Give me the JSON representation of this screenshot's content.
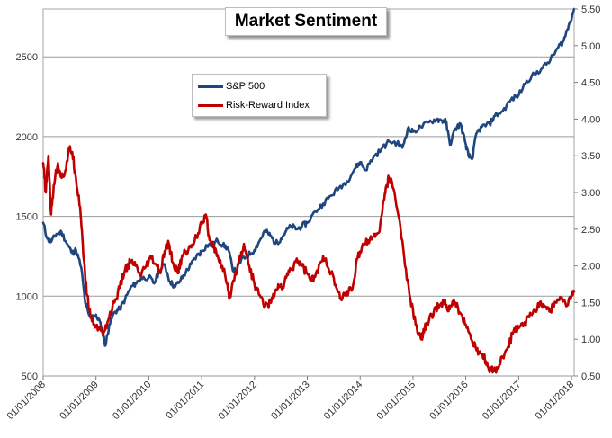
{
  "chart_data": {
    "type": "line",
    "title": "Market Sentiment",
    "xlabel": "",
    "ylabel": "",
    "x_ticks": [
      "01/01/2008",
      "01/01/2009",
      "01/01/2010",
      "01/01/2011",
      "01/01/2012",
      "01/01/2013",
      "01/01/2014",
      "01/01/2015",
      "01/01/2016",
      "01/01/2017",
      "01/01/2018"
    ],
    "y_left_ticks": [
      500,
      1000,
      1500,
      2000,
      2500
    ],
    "y_left_range": [
      500,
      2800
    ],
    "y_right_ticks": [
      "0.50",
      "1.00",
      "1.50",
      "2.00",
      "2.50",
      "3.00",
      "3.50",
      "4.00",
      "4.50",
      "5.00",
      "5.50"
    ],
    "y_right_range": [
      0.5,
      5.5
    ],
    "x_range": [
      2008.0,
      2018.05
    ],
    "grid": "horizontal",
    "legend_position": "top-center",
    "series": [
      {
        "name": "S&P 500",
        "axis": "left",
        "color": "#1f477e",
        "x": [
          2008.0,
          2008.08,
          2008.15,
          2008.25,
          2008.35,
          2008.45,
          2008.55,
          2008.62,
          2008.72,
          2008.8,
          2008.87,
          2008.95,
          2009.05,
          2009.12,
          2009.18,
          2009.25,
          2009.35,
          2009.45,
          2009.55,
          2009.65,
          2009.75,
          2009.85,
          2010.0,
          2010.1,
          2010.2,
          2010.3,
          2010.4,
          2010.5,
          2010.6,
          2010.7,
          2010.8,
          2010.9,
          2011.0,
          2011.1,
          2011.2,
          2011.3,
          2011.4,
          2011.5,
          2011.58,
          2011.65,
          2011.75,
          2011.85,
          2012.0,
          2012.1,
          2012.2,
          2012.3,
          2012.4,
          2012.5,
          2012.6,
          2012.7,
          2012.8,
          2012.9,
          2013.0,
          2013.15,
          2013.3,
          2013.45,
          2013.6,
          2013.75,
          2013.9,
          2014.0,
          2014.1,
          2014.25,
          2014.4,
          2014.55,
          2014.7,
          2014.8,
          2014.9,
          2015.0,
          2015.15,
          2015.3,
          2015.45,
          2015.55,
          2015.62,
          2015.7,
          2015.8,
          2015.9,
          2016.0,
          2016.05,
          2016.12,
          2016.2,
          2016.3,
          2016.45,
          2016.55,
          2016.7,
          2016.85,
          2017.0,
          2017.15,
          2017.3,
          2017.45,
          2017.6,
          2017.75,
          2017.85,
          2017.95,
          2018.05
        ],
        "values": [
          1460,
          1360,
          1340,
          1390,
          1400,
          1330,
          1270,
          1290,
          1180,
          950,
          880,
          880,
          860,
          780,
          690,
          820,
          900,
          920,
          980,
          1050,
          1080,
          1110,
          1120,
          1080,
          1160,
          1200,
          1090,
          1060,
          1100,
          1150,
          1200,
          1250,
          1280,
          1320,
          1320,
          1350,
          1320,
          1300,
          1180,
          1150,
          1230,
          1250,
          1290,
          1350,
          1410,
          1380,
          1330,
          1360,
          1410,
          1440,
          1420,
          1440,
          1460,
          1530,
          1580,
          1630,
          1680,
          1720,
          1800,
          1840,
          1790,
          1870,
          1920,
          1970,
          1960,
          1930,
          2050,
          2030,
          2060,
          2090,
          2110,
          2100,
          2100,
          1950,
          2050,
          2080,
          1950,
          1880,
          1860,
          2020,
          2060,
          2080,
          2130,
          2160,
          2230,
          2260,
          2350,
          2390,
          2430,
          2480,
          2560,
          2600,
          2700,
          2800
        ]
      },
      {
        "name": "Risk-Reward Index",
        "axis": "right",
        "color": "#c00000",
        "x": [
          2008.0,
          2008.05,
          2008.1,
          2008.15,
          2008.2,
          2008.28,
          2008.35,
          2008.42,
          2008.5,
          2008.55,
          2008.62,
          2008.7,
          2008.75,
          2008.8,
          2008.87,
          2008.95,
          2009.05,
          2009.15,
          2009.25,
          2009.35,
          2009.45,
          2009.55,
          2009.65,
          2009.75,
          2009.85,
          2009.95,
          2010.05,
          2010.15,
          2010.22,
          2010.3,
          2010.38,
          2010.45,
          2010.55,
          2010.62,
          2010.7,
          2010.8,
          2010.9,
          2011.0,
          2011.08,
          2011.15,
          2011.22,
          2011.3,
          2011.38,
          2011.45,
          2011.52,
          2011.6,
          2011.7,
          2011.8,
          2011.9,
          2012.0,
          2012.1,
          2012.2,
          2012.3,
          2012.38,
          2012.45,
          2012.55,
          2012.62,
          2012.7,
          2012.8,
          2012.9,
          2013.0,
          2013.08,
          2013.15,
          2013.25,
          2013.35,
          2013.45,
          2013.55,
          2013.62,
          2013.7,
          2013.78,
          2013.87,
          2013.95,
          2014.05,
          2014.15,
          2014.25,
          2014.35,
          2014.45,
          2014.5,
          2014.55,
          2014.65,
          2014.75,
          2014.85,
          2014.95,
          2015.05,
          2015.15,
          2015.22,
          2015.3,
          2015.4,
          2015.5,
          2015.6,
          2015.65,
          2015.72,
          2015.8,
          2015.9,
          2016.0,
          2016.1,
          2016.2,
          2016.3,
          2016.38,
          2016.45,
          2016.52,
          2016.6,
          2016.7,
          2016.8,
          2016.9,
          2017.0,
          2017.1,
          2017.2,
          2017.3,
          2017.4,
          2017.5,
          2017.6,
          2017.7,
          2017.8,
          2017.9,
          2018.0,
          2018.05
        ],
        "values": [
          3.4,
          3.0,
          3.5,
          2.7,
          3.1,
          3.4,
          3.2,
          3.3,
          3.6,
          3.55,
          3.2,
          2.8,
          2.3,
          1.8,
          1.4,
          1.2,
          1.15,
          1.1,
          1.3,
          1.5,
          1.7,
          1.95,
          2.05,
          2.0,
          1.85,
          2.0,
          2.1,
          2.0,
          1.9,
          2.2,
          2.3,
          2.05,
          1.9,
          2.1,
          2.2,
          2.25,
          2.4,
          2.6,
          2.7,
          2.35,
          2.25,
          2.15,
          2.0,
          1.85,
          1.55,
          1.8,
          2.05,
          2.3,
          2.0,
          1.75,
          1.6,
          1.45,
          1.5,
          1.6,
          1.75,
          1.7,
          1.9,
          1.95,
          2.1,
          2.0,
          1.9,
          1.8,
          1.85,
          2.05,
          2.1,
          1.9,
          1.7,
          1.55,
          1.6,
          1.65,
          1.75,
          2.1,
          2.3,
          2.35,
          2.4,
          2.45,
          2.9,
          3.1,
          3.2,
          3.0,
          2.6,
          2.0,
          1.55,
          1.2,
          1.0,
          1.15,
          1.25,
          1.4,
          1.45,
          1.5,
          1.4,
          1.45,
          1.5,
          1.35,
          1.2,
          1.0,
          0.85,
          0.8,
          0.7,
          0.55,
          0.6,
          0.6,
          0.75,
          0.9,
          1.1,
          1.15,
          1.2,
          1.3,
          1.4,
          1.5,
          1.45,
          1.4,
          1.5,
          1.55,
          1.45,
          1.6,
          1.65
        ]
      }
    ]
  }
}
